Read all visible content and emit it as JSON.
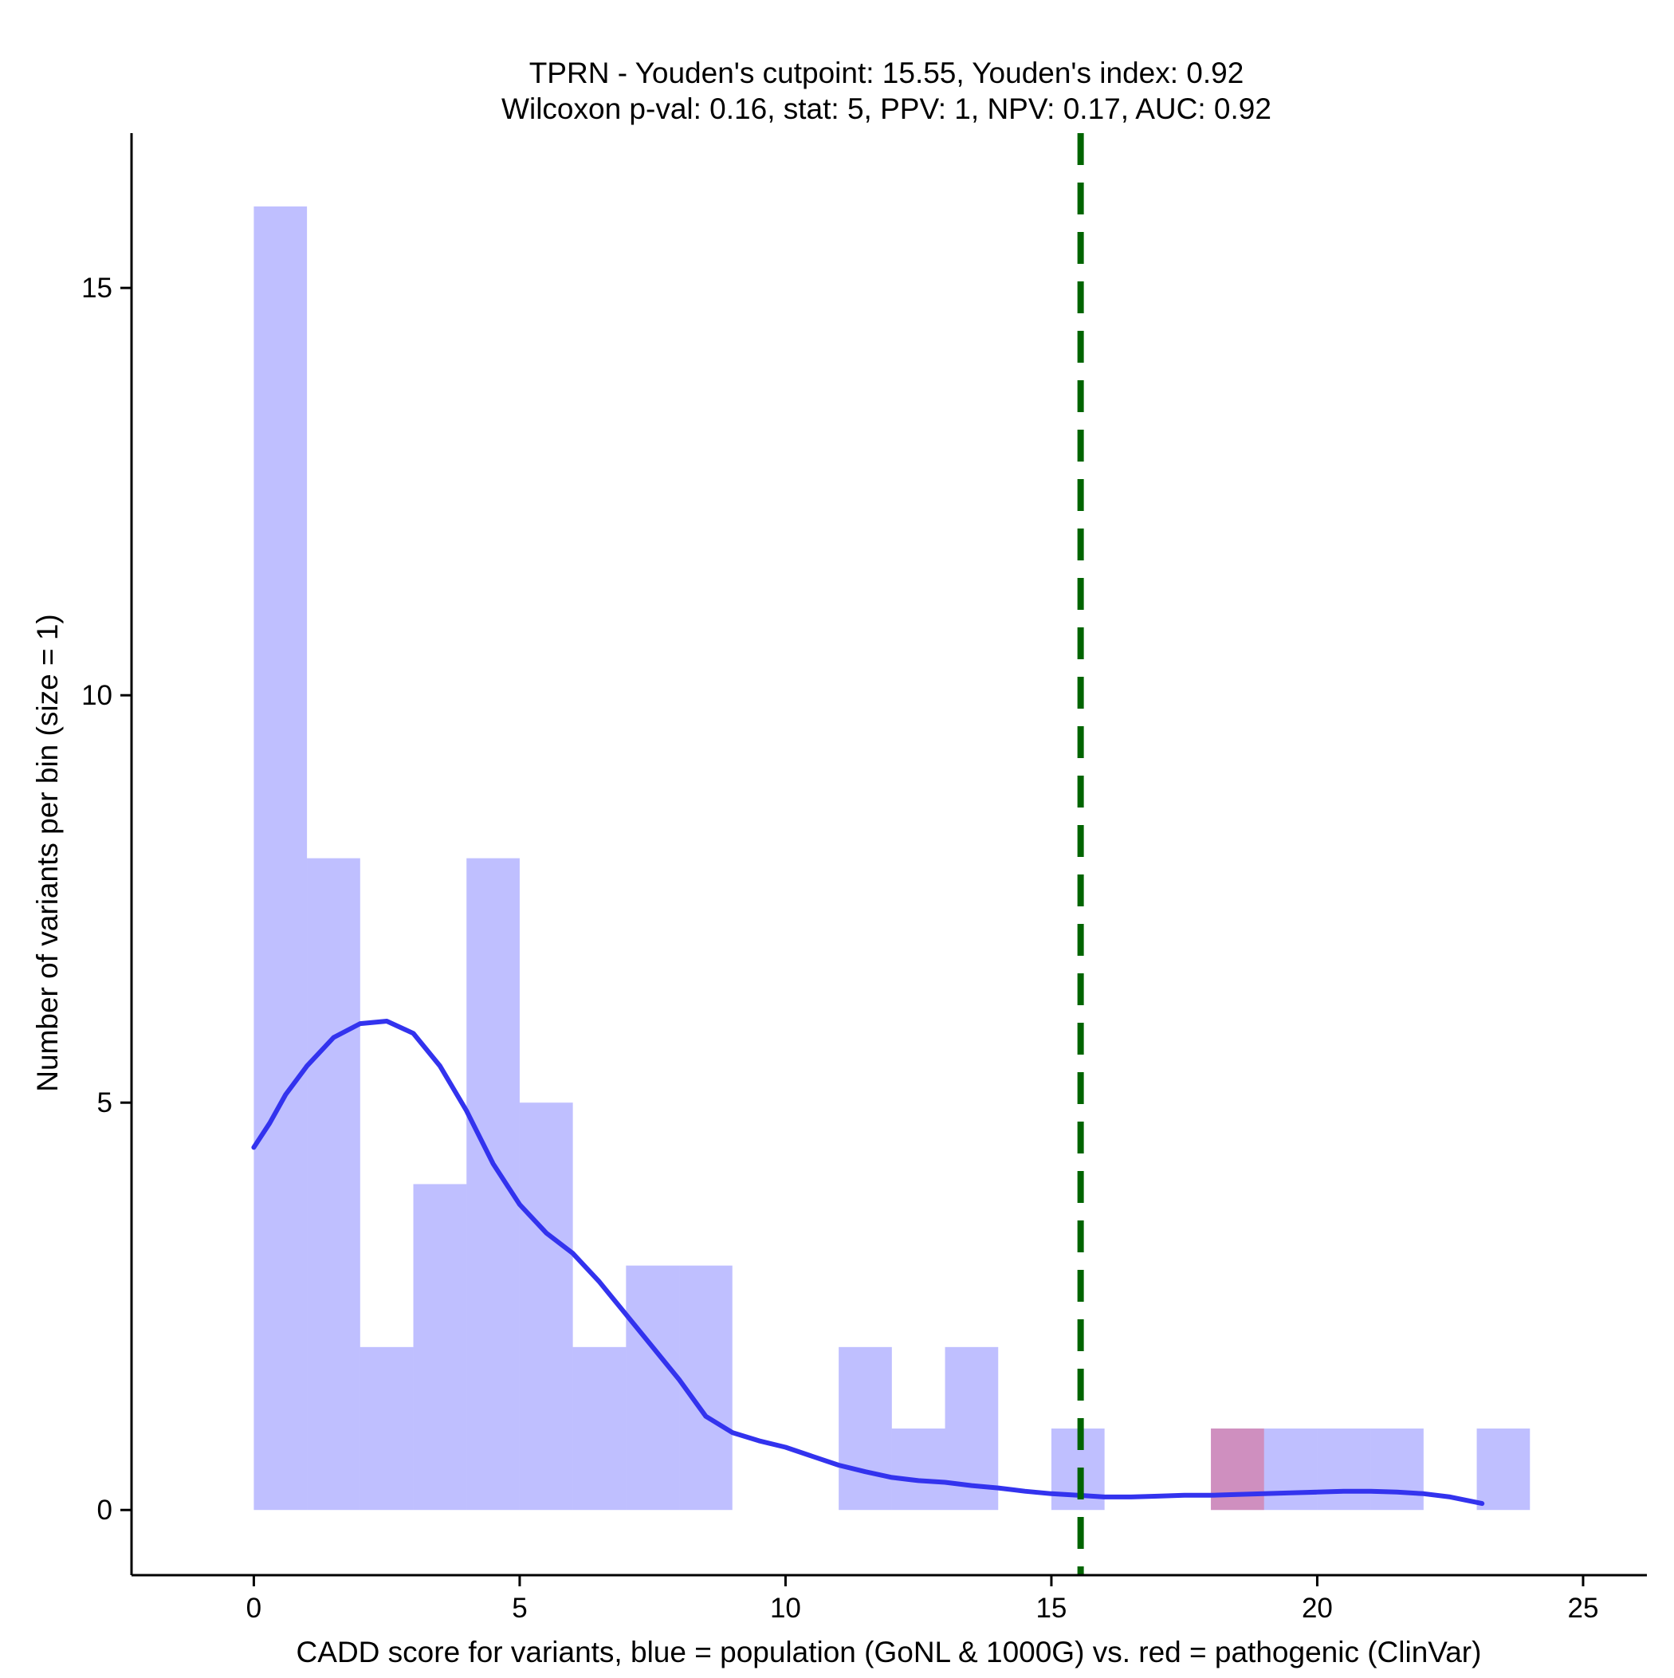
{
  "chart_data": {
    "type": "bar",
    "title": "TPRN - Youden's cutpoint: 15.55, Youden's index: 0.92",
    "subtitle": "Wilcoxon p-val: 0.16, stat: 5, PPV: 1, NPV: 0.17, AUC: 0.92",
    "xlabel": "CADD score for variants, blue = population (GoNL & 1000G) vs. red = pathogenic (ClinVar)",
    "ylabel": "Number of variants per bin (size = 1)",
    "xlim": [
      -2.3,
      26.2
    ],
    "ylim": [
      -0.8,
      16.9
    ],
    "x_ticks": [
      0,
      5,
      10,
      15,
      20,
      25
    ],
    "y_ticks": [
      0,
      5,
      10,
      15
    ],
    "bin_size": 1,
    "grid": false,
    "legend": "none",
    "colors": {
      "population": "#bfbffa",
      "pathogenic": "#d191c7",
      "density": "#3333ee",
      "cutpoint": "#006400"
    },
    "cutpoint": 15.55,
    "series": [
      {
        "name": "population",
        "bins": [
          {
            "start": 0,
            "end": 1,
            "count": 16
          },
          {
            "start": 1,
            "end": 2,
            "count": 8
          },
          {
            "start": 2,
            "end": 3,
            "count": 2
          },
          {
            "start": 3,
            "end": 4,
            "count": 4
          },
          {
            "start": 4,
            "end": 5,
            "count": 8
          },
          {
            "start": 5,
            "end": 6,
            "count": 5
          },
          {
            "start": 6,
            "end": 7,
            "count": 2
          },
          {
            "start": 7,
            "end": 8,
            "count": 3
          },
          {
            "start": 8,
            "end": 9,
            "count": 3
          },
          {
            "start": 9,
            "end": 10,
            "count": 0
          },
          {
            "start": 10,
            "end": 11,
            "count": 0
          },
          {
            "start": 11,
            "end": 12,
            "count": 2
          },
          {
            "start": 12,
            "end": 13,
            "count": 1
          },
          {
            "start": 13,
            "end": 14,
            "count": 2
          },
          {
            "start": 14,
            "end": 15,
            "count": 0
          },
          {
            "start": 15,
            "end": 16,
            "count": 1
          },
          {
            "start": 16,
            "end": 17,
            "count": 0
          },
          {
            "start": 17,
            "end": 18,
            "count": 0
          },
          {
            "start": 18,
            "end": 19,
            "count": 1
          },
          {
            "start": 19,
            "end": 20,
            "count": 1
          },
          {
            "start": 20,
            "end": 21,
            "count": 1
          },
          {
            "start": 21,
            "end": 22,
            "count": 1
          },
          {
            "start": 22,
            "end": 23,
            "count": 0
          },
          {
            "start": 23,
            "end": 24,
            "count": 1
          }
        ]
      },
      {
        "name": "pathogenic",
        "bins": [
          {
            "start": 18,
            "end": 19,
            "count": 1
          }
        ]
      }
    ],
    "density_curve": {
      "x": [
        0,
        0.3,
        0.6,
        1.0,
        1.5,
        2.0,
        2.5,
        3.0,
        3.5,
        4.0,
        4.5,
        5.0,
        5.5,
        6.0,
        6.5,
        7.0,
        7.5,
        8.0,
        8.5,
        9.0,
        9.5,
        10.0,
        10.5,
        11.0,
        11.5,
        12.0,
        12.5,
        13.0,
        13.5,
        14.0,
        14.5,
        15.0,
        15.5,
        16.0,
        16.5,
        17.0,
        17.5,
        18.0,
        18.5,
        19.0,
        19.5,
        20.0,
        20.5,
        21.0,
        21.5,
        22.0,
        22.5,
        23.1
      ],
      "y": [
        4.45,
        4.75,
        5.1,
        5.45,
        5.8,
        5.97,
        6.0,
        5.85,
        5.45,
        4.9,
        4.25,
        3.75,
        3.4,
        3.15,
        2.8,
        2.4,
        2.0,
        1.6,
        1.15,
        0.95,
        0.85,
        0.77,
        0.66,
        0.55,
        0.47,
        0.4,
        0.36,
        0.34,
        0.3,
        0.27,
        0.23,
        0.2,
        0.18,
        0.16,
        0.16,
        0.17,
        0.18,
        0.18,
        0.19,
        0.2,
        0.21,
        0.22,
        0.23,
        0.23,
        0.22,
        0.2,
        0.16,
        0.08
      ]
    }
  }
}
